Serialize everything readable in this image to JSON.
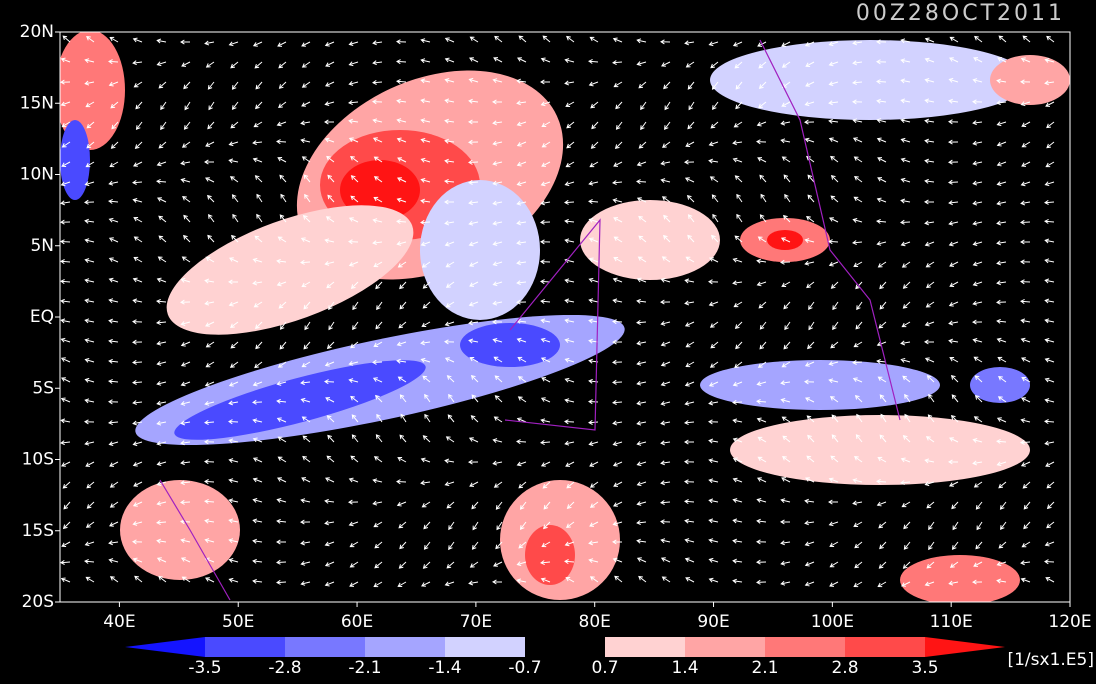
{
  "map": {
    "title": "00Z28OCT2011",
    "xlim": [
      35,
      120
    ],
    "ylim": [
      -20,
      20
    ],
    "lon_ticks": [
      {
        "value": 40,
        "label": "40E"
      },
      {
        "value": 50,
        "label": "50E"
      },
      {
        "value": 60,
        "label": "60E"
      },
      {
        "value": 70,
        "label": "70E"
      },
      {
        "value": 80,
        "label": "80E"
      },
      {
        "value": 90,
        "label": "90E"
      },
      {
        "value": 100,
        "label": "100E"
      },
      {
        "value": 110,
        "label": "110E"
      },
      {
        "value": 120,
        "label": "120E"
      }
    ],
    "lat_ticks": [
      {
        "value": 20,
        "label": "20N"
      },
      {
        "value": 15,
        "label": "15N"
      },
      {
        "value": 10,
        "label": "10N"
      },
      {
        "value": 5,
        "label": "5N"
      },
      {
        "value": 0,
        "label": "EQ"
      },
      {
        "value": -5,
        "label": "5S"
      },
      {
        "value": -10,
        "label": "10S"
      },
      {
        "value": -15,
        "label": "15S"
      },
      {
        "value": -20,
        "label": "20S"
      }
    ],
    "colorbar": {
      "levels": [
        -3.5,
        -2.8,
        -2.1,
        -1.4,
        -0.7,
        0.7,
        1.4,
        2.1,
        2.8,
        3.5
      ],
      "colors": [
        "#1414ff",
        "#4a4aff",
        "#7878ff",
        "#a5a5ff",
        "#d2d2ff",
        "#000000",
        "#ffd2d2",
        "#ffa5a5",
        "#ff7878",
        "#ff4a4a",
        "#ff1414"
      ],
      "units": "[1/sx1.E5]"
    }
  }
}
